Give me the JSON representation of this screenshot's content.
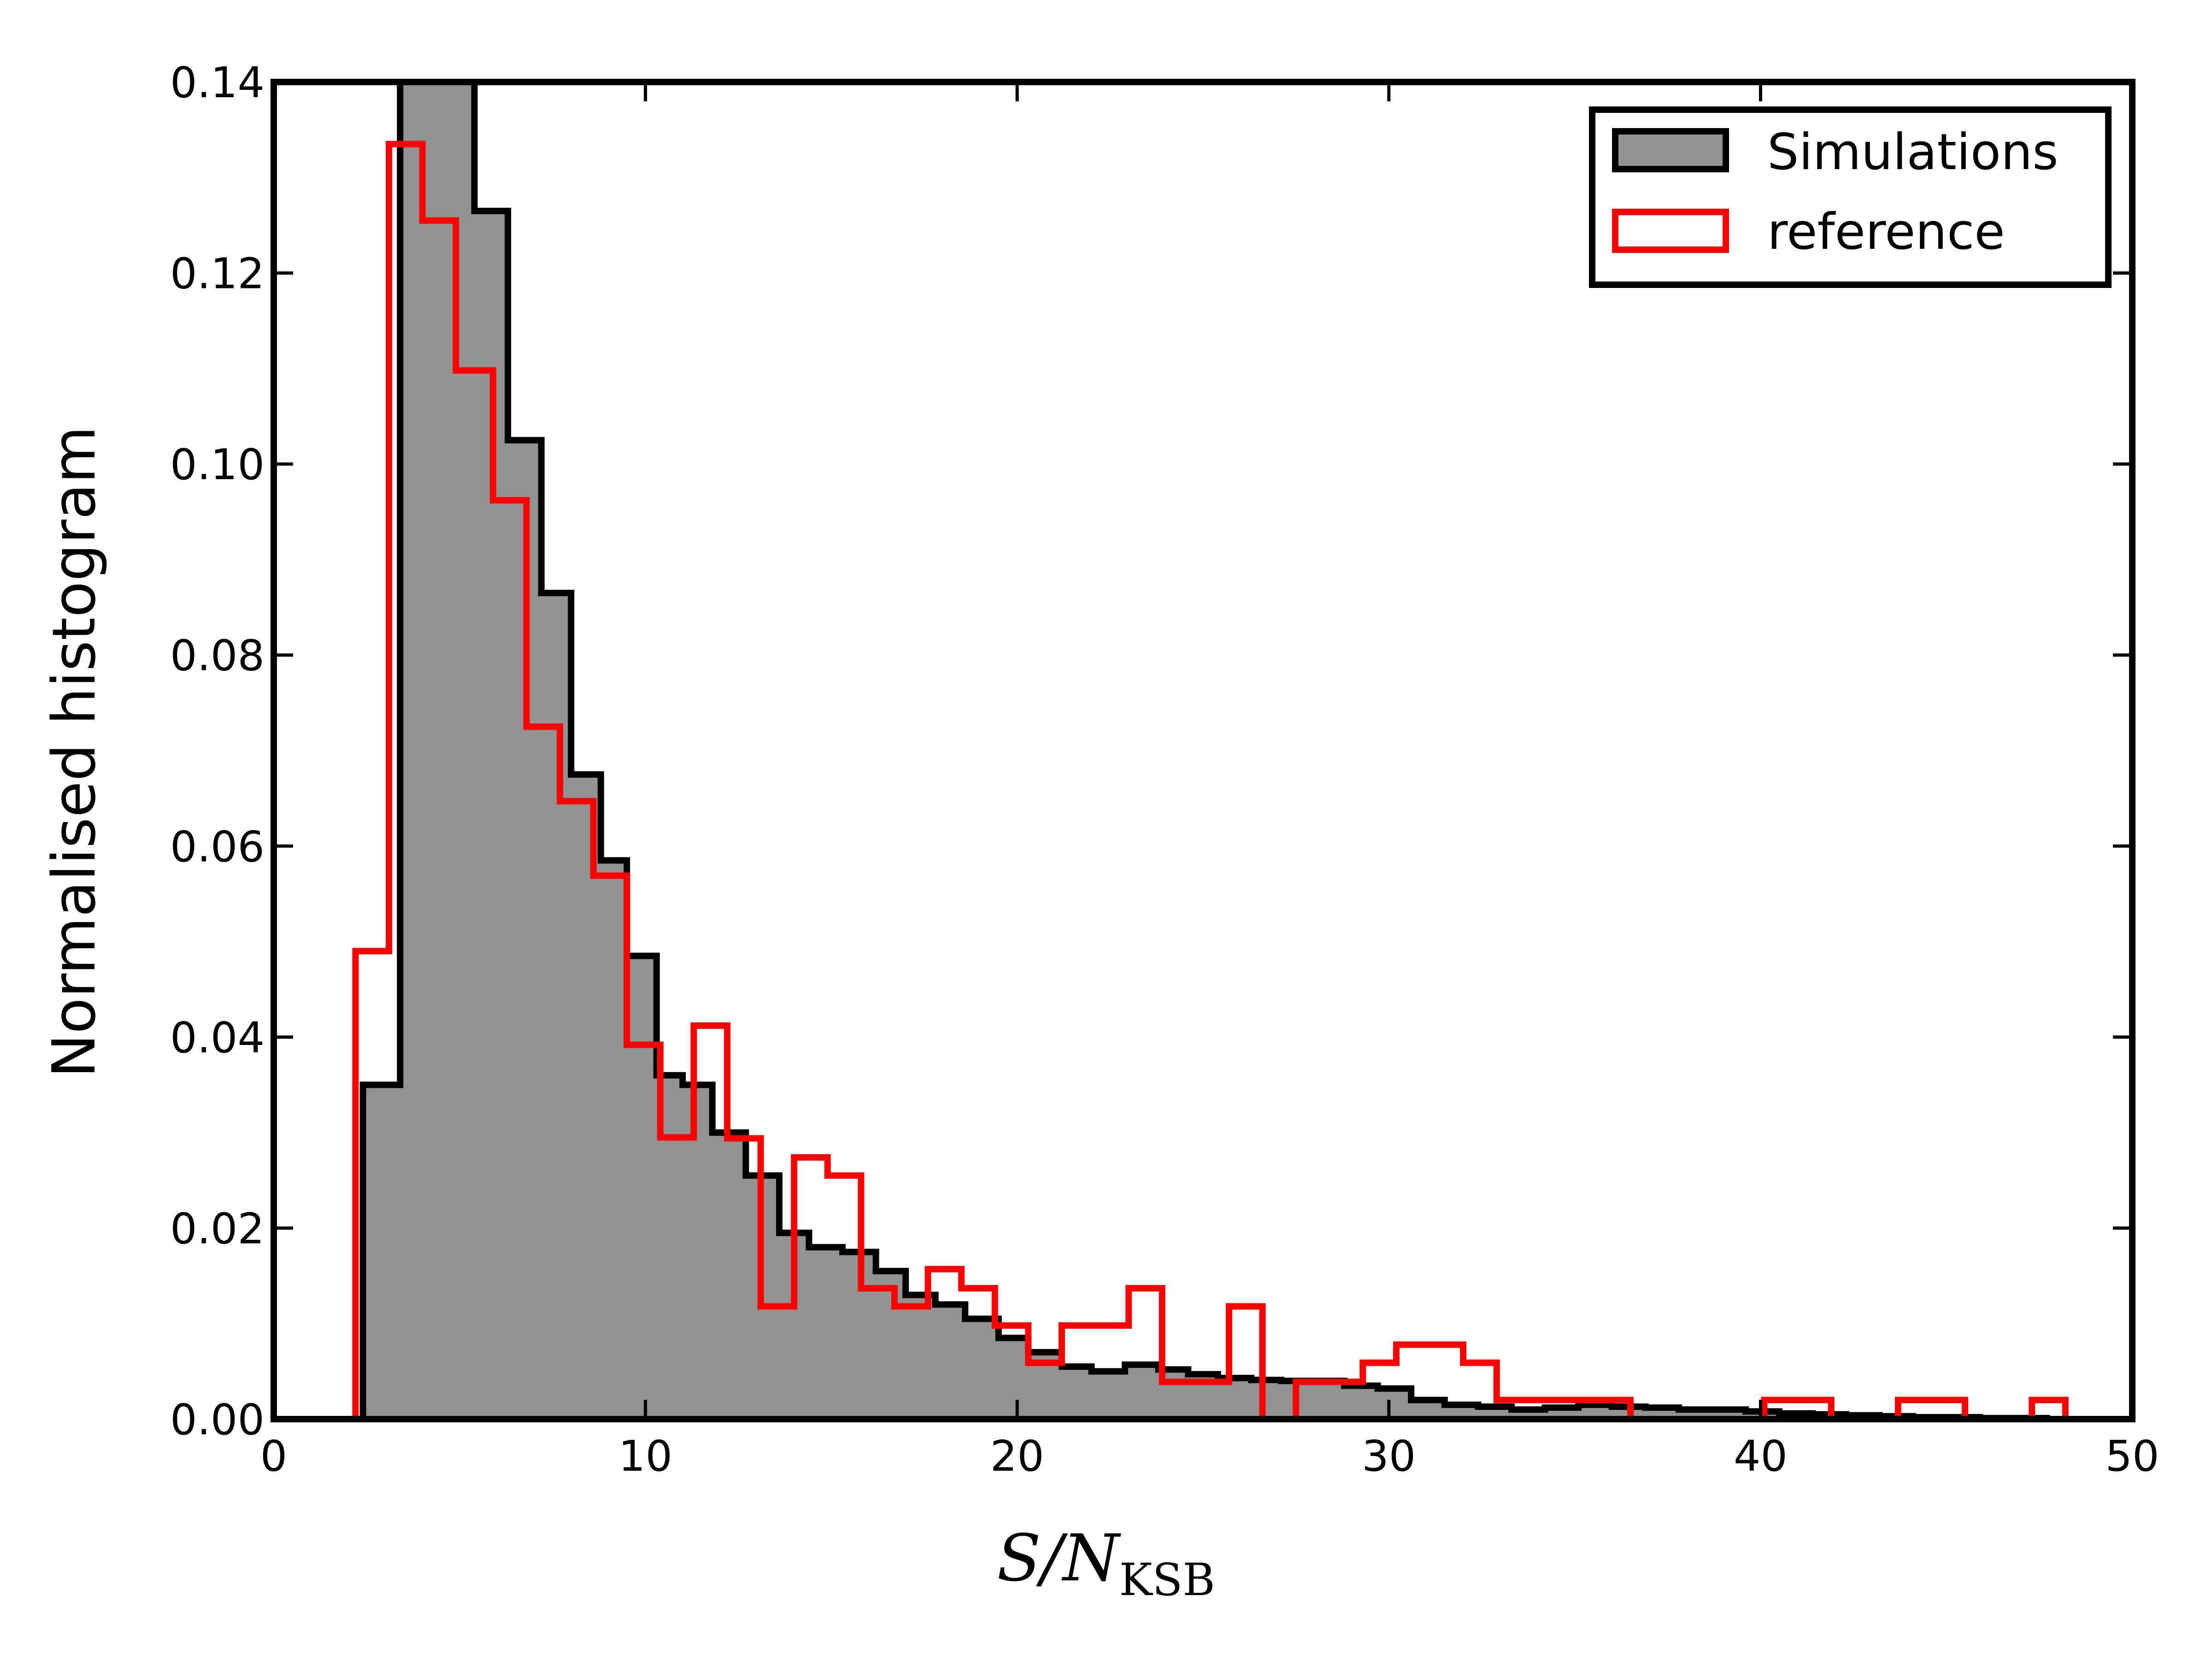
{
  "chart_data": {
    "type": "bar",
    "title": "",
    "xlabel": "S/N",
    "xlabel_subscript": "KSB",
    "ylabel": "Normalised histogram",
    "xlim": [
      0,
      50
    ],
    "ylim": [
      0,
      0.14
    ],
    "xticks": [
      0,
      10,
      20,
      30,
      40,
      50
    ],
    "xtick_labels": [
      "0",
      "10",
      "20",
      "30",
      "40",
      "50"
    ],
    "yticks": [
      0,
      0.02,
      0.04,
      0.06,
      0.08,
      0.1,
      0.12,
      0.14
    ],
    "ytick_labels": [
      "0.00",
      "0.02",
      "0.04",
      "0.06",
      "0.08",
      "0.10",
      "0.12",
      "0.14"
    ],
    "grid": false,
    "legend_position": "top-right",
    "series": [
      {
        "name": "Simulations",
        "style": "filled-step",
        "fill_color": "#929292",
        "edge_color": "#000000",
        "bin_edges": [
          2.4,
          3.4,
          4.4,
          5.4,
          6.3,
          7.2,
          8.0,
          8.8,
          9.5,
          10.3,
          11.0,
          11.8,
          12.7,
          13.6,
          14.4,
          15.3,
          16.2,
          17.0,
          17.8,
          18.6,
          19.5,
          20.3,
          21.2,
          22.0,
          22.9,
          23.8,
          24.6,
          25.4,
          26.3,
          27.1,
          28.0,
          28.8,
          29.7,
          30.6,
          31.5,
          32.4,
          33.3,
          34.2,
          35.1,
          36.0,
          36.9,
          37.8,
          38.7,
          39.6,
          40.5,
          41.4,
          42.3,
          43.2,
          44.1,
          45.0,
          45.9,
          46.8,
          47.7
        ],
        "values": [
          0.035,
          0.14,
          0.1415,
          0.1265,
          0.1025,
          0.0865,
          0.0675,
          0.0585,
          0.0485,
          0.036,
          0.035,
          0.03,
          0.0255,
          0.0195,
          0.018,
          0.0175,
          0.0155,
          0.013,
          0.012,
          0.0105,
          0.0085,
          0.007,
          0.0055,
          0.005,
          0.0057,
          0.0052,
          0.0047,
          0.0043,
          0.0041,
          0.004,
          0.004,
          0.0035,
          0.0032,
          0.002,
          0.0015,
          0.0013,
          0.001,
          0.0012,
          0.0015,
          0.0013,
          0.0012,
          0.001,
          0.001,
          0.0008,
          0.0006,
          0.0005,
          0.0004,
          0.0003,
          0.0002,
          0.0002,
          0.0001,
          0.0001
        ]
      },
      {
        "name": "reference",
        "style": "outline-step",
        "edge_color": "#ff0000",
        "bin_edges": [
          2.2,
          3.1,
          4.0,
          4.9,
          5.9,
          6.8,
          7.7,
          8.6,
          9.5,
          10.4,
          11.3,
          12.2,
          13.1,
          14.0,
          14.9,
          15.8,
          16.7,
          17.6,
          18.5,
          19.4,
          20.3,
          21.2,
          22.1,
          23.0,
          23.9,
          24.8,
          25.7,
          26.6,
          27.5,
          28.4,
          29.3,
          30.2,
          31.1,
          32.0,
          32.9,
          33.8,
          34.7,
          35.6,
          36.5,
          37.4,
          38.3,
          39.2,
          40.1,
          41.0,
          41.9,
          42.8,
          43.7,
          44.6,
          45.5,
          46.4,
          47.3,
          48.2
        ],
        "values": [
          0.049,
          0.1335,
          0.1255,
          0.1098,
          0.0962,
          0.0725,
          0.0647,
          0.0569,
          0.0392,
          0.0295,
          0.0412,
          0.0294,
          0.0118,
          0.0274,
          0.0255,
          0.0137,
          0.0118,
          0.0157,
          0.0137,
          0.0098,
          0.0059,
          0.0098,
          0.0098,
          0.0137,
          0.0039,
          0.0039,
          0.0118,
          0.0,
          0.0039,
          0.0039,
          0.0059,
          0.0078,
          0.0078,
          0.0059,
          0.002,
          0.002,
          0.002,
          0.002,
          0.0,
          0.0,
          0.0,
          0.0,
          0.002,
          0.002,
          0.0,
          0.0,
          0.002,
          0.002,
          0.0,
          0.0,
          0.002
        ]
      }
    ]
  }
}
